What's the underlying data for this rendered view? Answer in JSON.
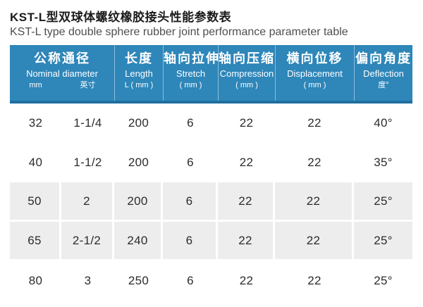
{
  "title": {
    "zh": "KST-L型双球体螺纹橡胶接头性能参数表",
    "en": "KST-L type double sphere rubber joint performance parameter table"
  },
  "colors": {
    "header_bg": "#2e86b9",
    "header_bottom_edge": "#1f6fa0",
    "gray_row_bg": "#ededed",
    "header_text": "#ffffff",
    "body_text": "#2c2c2c"
  },
  "table": {
    "header_groups": [
      {
        "zh": "公称通径",
        "en": "Nominal diameter",
        "units": [
          "mm",
          "英寸"
        ]
      },
      {
        "zh": "长度",
        "en": "Length",
        "unit": "L ( mm )"
      },
      {
        "zh": "轴向拉伸",
        "en": "Stretch",
        "unit": "( mm )"
      },
      {
        "zh": "轴向压缩",
        "en": "Compression",
        "unit": "( mm )"
      },
      {
        "zh": "横向位移",
        "en": "Displacement",
        "unit": "( mm )"
      },
      {
        "zh": "偏向角度",
        "en": "Deflection",
        "unit": "度°"
      }
    ],
    "rows": [
      [
        "32",
        "1-1/4",
        "200",
        "6",
        "22",
        "22",
        "40°"
      ],
      [
        "40",
        "1-1/2",
        "200",
        "6",
        "22",
        "22",
        "35°"
      ],
      [
        "50",
        "2",
        "200",
        "6",
        "22",
        "22",
        "25°"
      ],
      [
        "65",
        "2-1/2",
        "240",
        "6",
        "22",
        "22",
        "25°"
      ],
      [
        "80",
        "3",
        "250",
        "6",
        "22",
        "22",
        "25°"
      ]
    ],
    "row_shading": [
      "white",
      "white",
      "gray",
      "gray",
      "white"
    ]
  }
}
